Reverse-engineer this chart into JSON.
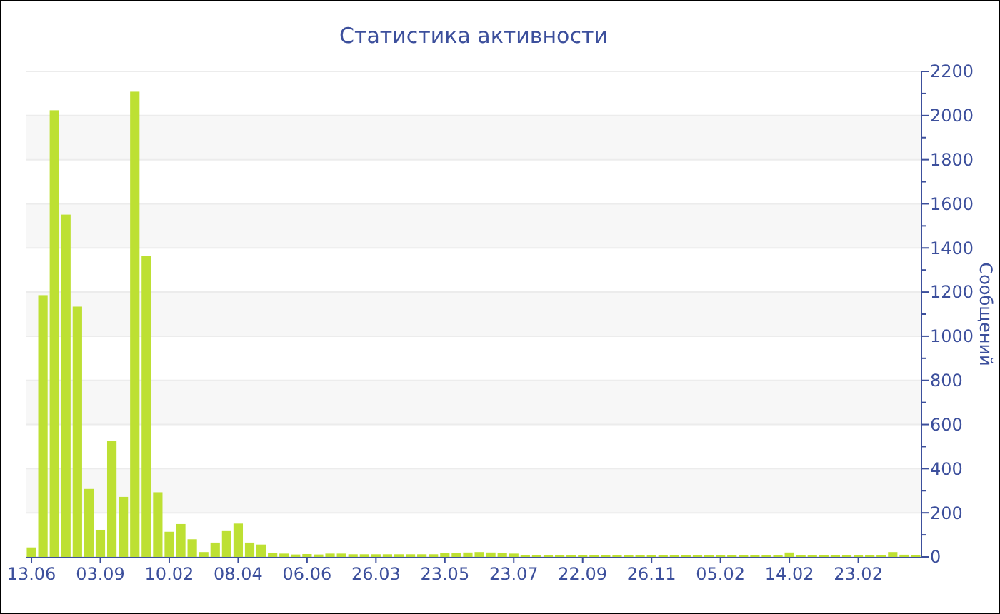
{
  "chart_data": {
    "type": "bar",
    "title": "Статистика активности",
    "ylabel": "Сообщений",
    "color": "#bde033",
    "categories": [
      "13.06",
      null,
      null,
      null,
      null,
      null,
      "03.09",
      null,
      null,
      null,
      null,
      null,
      "10.02",
      null,
      null,
      null,
      null,
      null,
      "08.04",
      null,
      null,
      null,
      null,
      null,
      "06.06",
      null,
      null,
      null,
      null,
      null,
      "26.03",
      null,
      null,
      null,
      null,
      null,
      "23.05",
      null,
      null,
      null,
      null,
      null,
      "23.07",
      null,
      null,
      null,
      null,
      null,
      "22.09",
      null,
      null,
      null,
      null,
      null,
      "26.11",
      null,
      null,
      null,
      null,
      null,
      "05.02",
      null,
      null,
      null,
      null,
      null,
      "14.02",
      null,
      null,
      null,
      null,
      null,
      "23.02",
      null,
      null,
      null,
      null,
      null
    ],
    "values": [
      43,
      1186,
      2024,
      1551,
      1134,
      308,
      123,
      526,
      272,
      2108,
      1363,
      293,
      114,
      149,
      80,
      22,
      65,
      117,
      151,
      65,
      56,
      17,
      15,
      11,
      13,
      11,
      15,
      15,
      12,
      12,
      12,
      12,
      12,
      12,
      12,
      12,
      18,
      18,
      20,
      22,
      20,
      18,
      15,
      8,
      8,
      8,
      8,
      8,
      8,
      8,
      8,
      8,
      8,
      8,
      8,
      8,
      8,
      8,
      8,
      8,
      8,
      8,
      8,
      8,
      8,
      8,
      20,
      8,
      8,
      8,
      8,
      8,
      8,
      8,
      8,
      22,
      10,
      8
    ],
    "ylim": [
      0,
      2200
    ],
    "yticks": [
      0,
      200,
      400,
      600,
      800,
      1000,
      1200,
      1400,
      1600,
      1800,
      2000,
      2200
    ],
    "grid": "y"
  }
}
